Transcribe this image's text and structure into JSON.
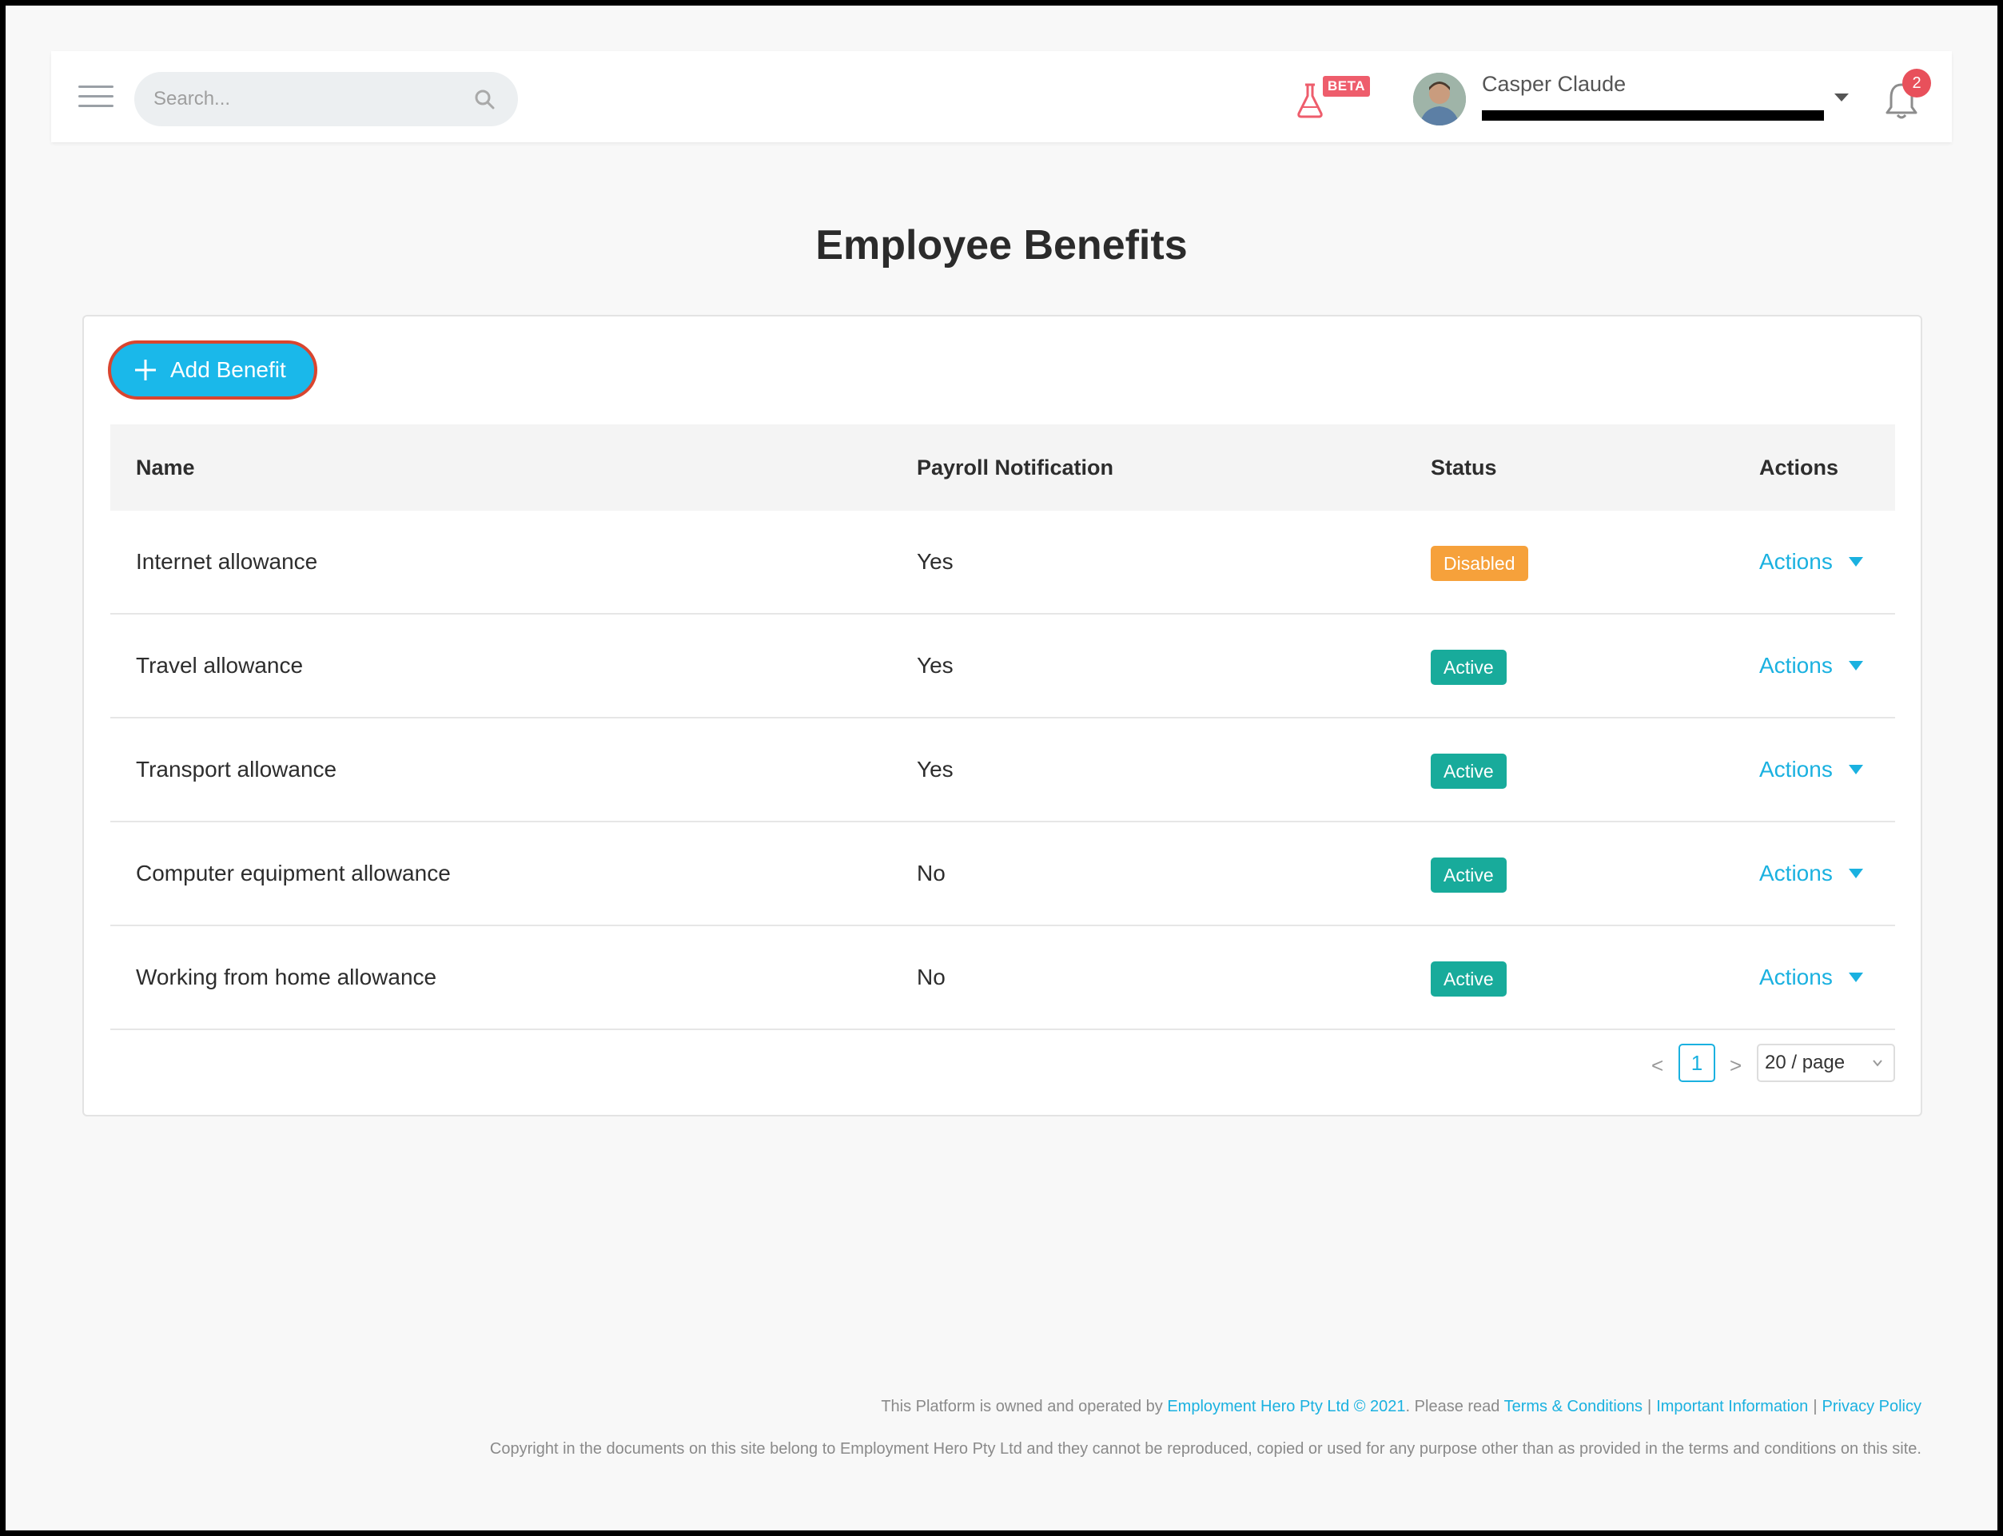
{
  "header": {
    "search_placeholder": "Search...",
    "beta_label": "BETA",
    "user_name": "Casper Claude",
    "notification_count": "2"
  },
  "page": {
    "title": "Employee Benefits"
  },
  "toolbar": {
    "add_label": "Add Benefit"
  },
  "table": {
    "columns": [
      "Name",
      "Payroll Notification",
      "Status",
      "Actions"
    ],
    "rows": [
      {
        "name": "Internet allowance",
        "payroll": "Yes",
        "status": "Disabled",
        "action": "Actions"
      },
      {
        "name": "Travel allowance",
        "payroll": "Yes",
        "status": "Active",
        "action": "Actions"
      },
      {
        "name": "Transport allowance",
        "payroll": "Yes",
        "status": "Active",
        "action": "Actions"
      },
      {
        "name": "Computer equipment allowance",
        "payroll": "No",
        "status": "Active",
        "action": "Actions"
      },
      {
        "name": "Working from home allowance",
        "payroll": "No",
        "status": "Active",
        "action": "Actions"
      }
    ]
  },
  "pagination": {
    "prev": "<",
    "current_page": "1",
    "next": ">",
    "page_size": "20 / page"
  },
  "footer": {
    "line1_prefix": "This Platform is owned and operated by",
    "company_link": "Employment Hero Pty Ltd © 2021",
    "line1_mid": ". Please read",
    "terms_link": "Terms & Conditions",
    "separator": "|",
    "info_link": "Important Information",
    "privacy_link": "Privacy Policy",
    "line2": "Copyright in the documents on this site belong to Employment Hero Pty Ltd and they cannot be reproduced, copied or used for any purpose other than as provided in the terms and conditions on this site."
  },
  "colors": {
    "accent": "#1ab8ea",
    "active_status": "#18ab9b",
    "disabled_status": "#f6a13b",
    "notification_badge": "#e8505b",
    "beta_badge": "#ee5d6c"
  }
}
